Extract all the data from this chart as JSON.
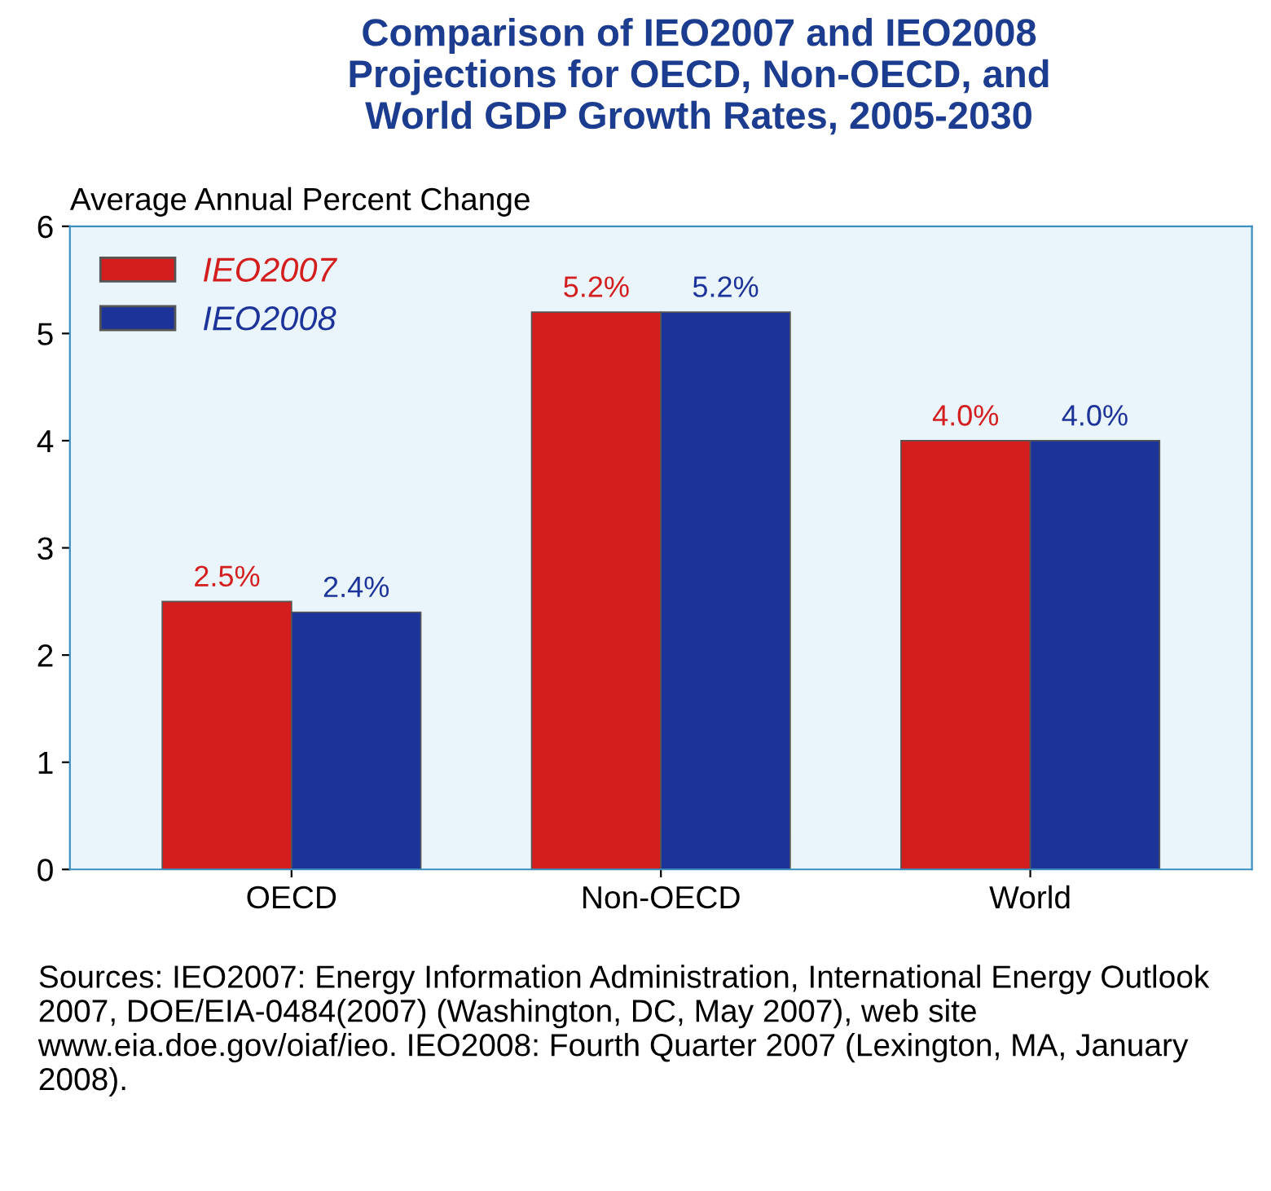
{
  "chart_data": {
    "type": "bar",
    "title": "Comparison of IEO2007 and IEO2008\nProjections for OECD, Non-OECD, and\nWorld GDP Growth Rates, 2005-2030",
    "ylabel": "Average Annual Percent Change",
    "categories": [
      "OECD",
      "Non-OECD",
      "World"
    ],
    "series": [
      {
        "name": "IEO2007",
        "color": "#d41e1e",
        "values": [
          2.5,
          5.2,
          4.0
        ],
        "value_labels": [
          "2.5%",
          "5.2%",
          "4.0%"
        ]
      },
      {
        "name": "IEO2008",
        "color": "#1c3399",
        "values": [
          2.4,
          5.2,
          4.0
        ],
        "value_labels": [
          "2.4%",
          "5.2%",
          "4.0%"
        ]
      }
    ],
    "ylim": [
      0,
      6
    ],
    "yticks": [
      0,
      1,
      2,
      3,
      4,
      5,
      6
    ],
    "grid": false,
    "legend": "top left",
    "annotations": [
      "Sources: IEO2007: Energy Information Administration, International Energy Outlook 2007, DOE/EIA-0484(2007) (Washington, DC, May 2007), web site www.eia.doe.gov/oiaf/ieo. IEO2008: Fourth Quarter 2007 (Lexington, MA, January 2008)."
    ]
  }
}
